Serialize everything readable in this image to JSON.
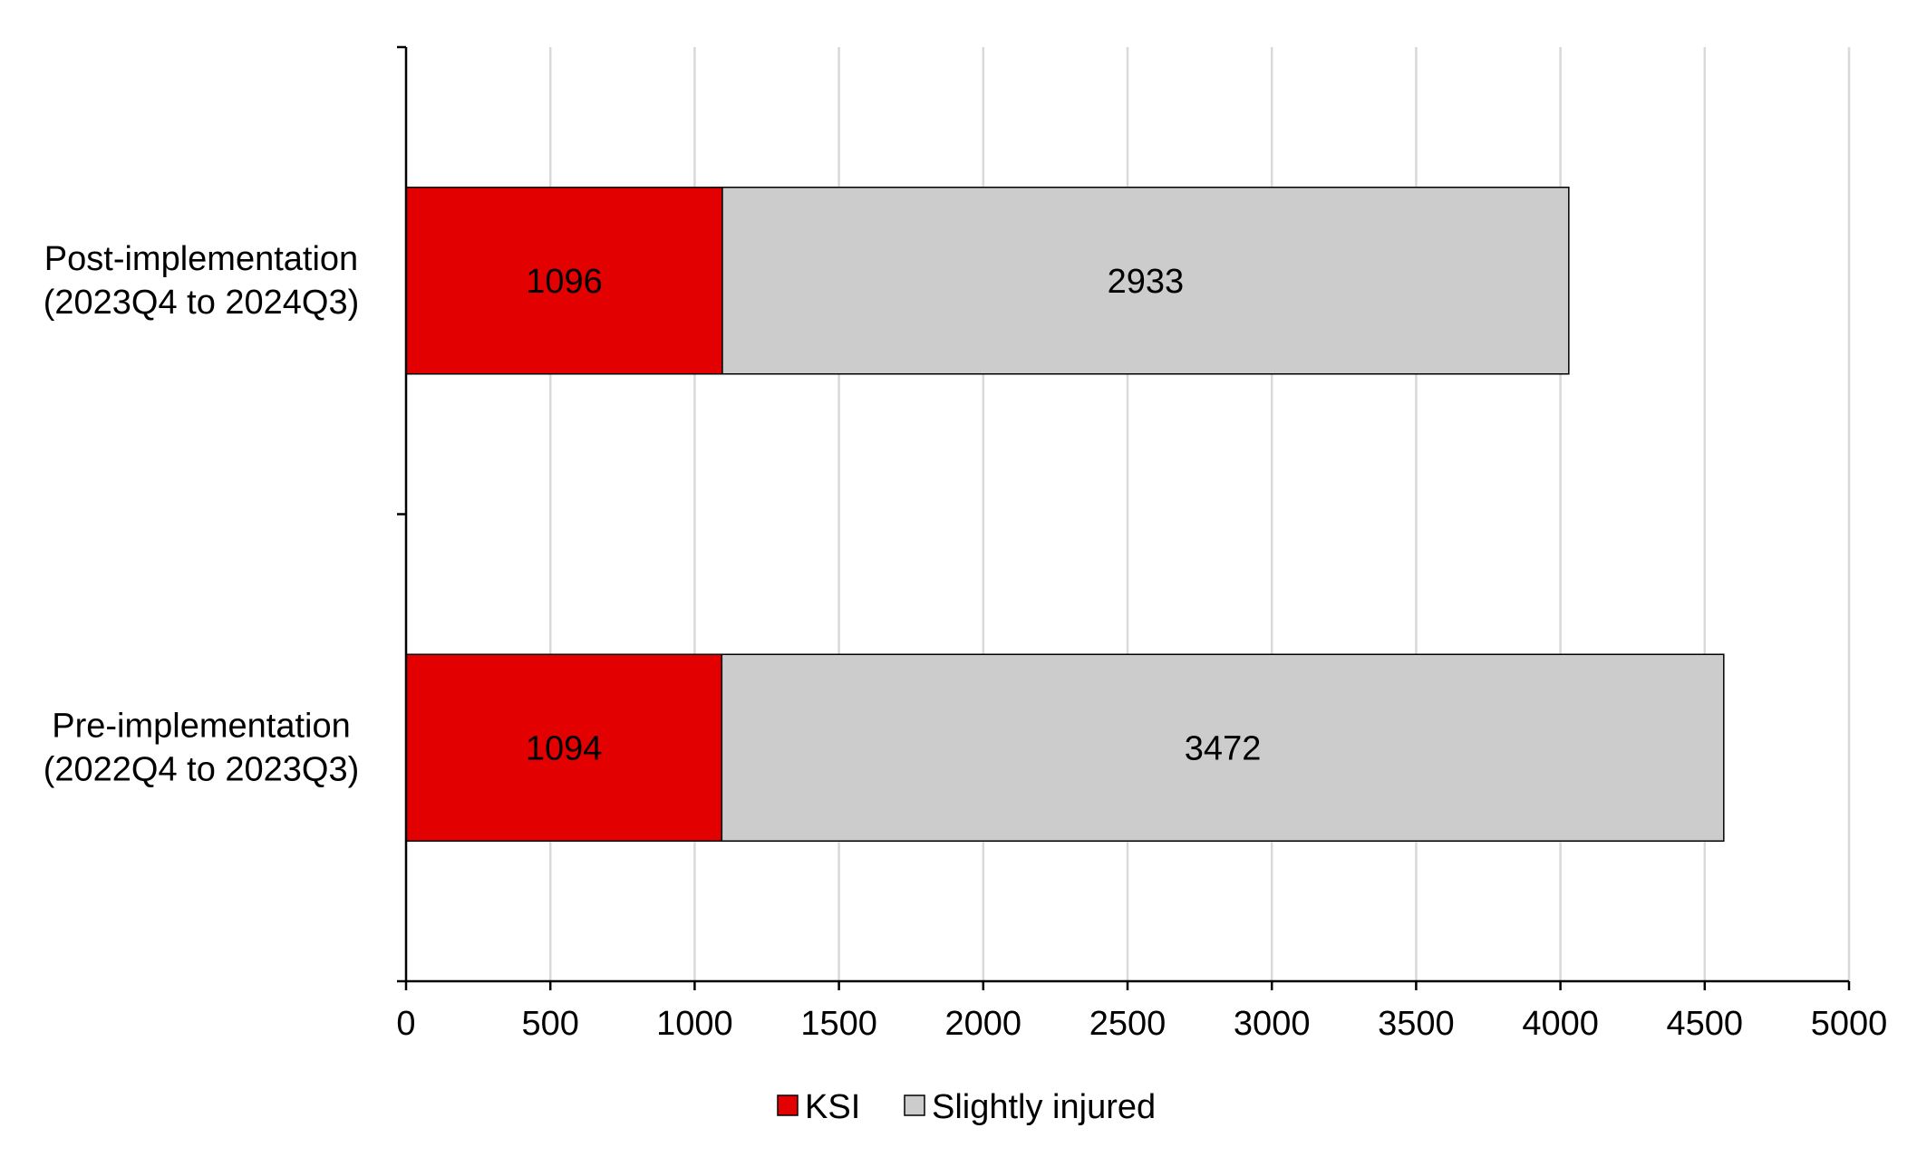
{
  "chart_data": {
    "type": "bar",
    "orientation": "horizontal",
    "stacked": true,
    "title": "",
    "xlabel": "",
    "ylabel": "",
    "categories": [
      {
        "line1": "Post-implementation",
        "line2": "(2023Q4 to 2024Q3)"
      },
      {
        "line1": "Pre-implementation",
        "line2": "(2022Q4 to 2023Q3)"
      }
    ],
    "series": [
      {
        "name": "KSI",
        "color": "#e30000",
        "values": [
          1096,
          1094
        ]
      },
      {
        "name": "Slightly injured",
        "color": "#cccccc",
        "values": [
          2933,
          3472
        ]
      }
    ],
    "xlim": [
      0,
      5000
    ],
    "x_ticks": [
      0,
      500,
      1000,
      1500,
      2000,
      2500,
      3000,
      3500,
      4000,
      4500,
      5000
    ],
    "grid": "vertical",
    "data_labels": true,
    "legend_position": "bottom"
  }
}
